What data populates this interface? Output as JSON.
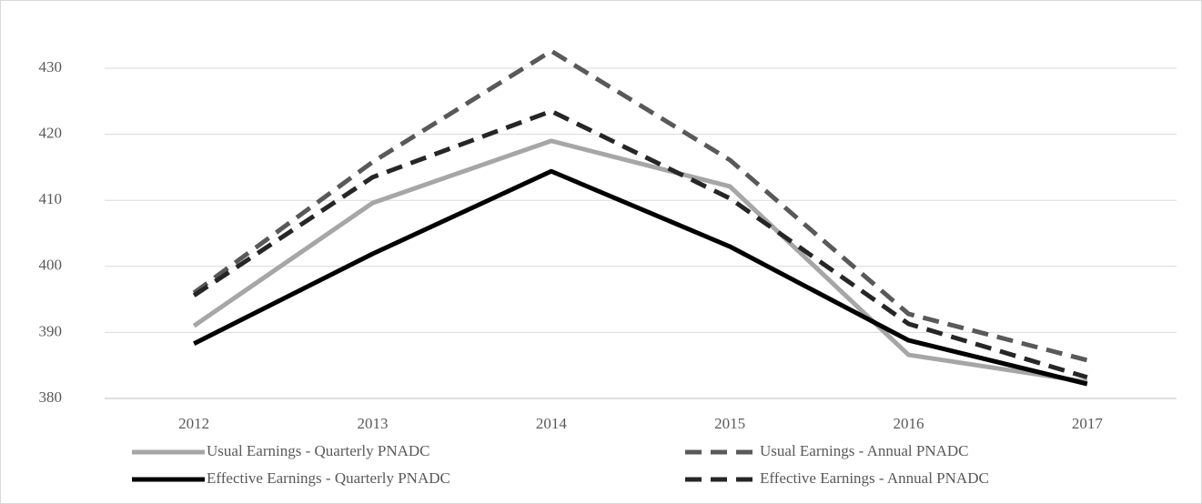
{
  "chart_data": {
    "type": "line",
    "x": [
      "2012",
      "2013",
      "2014",
      "2015",
      "2016",
      "2017"
    ],
    "series": [
      {
        "name": "Usual Earnings - Quarterly PNADC",
        "color": "#a6a6a6",
        "dash": false,
        "values": [
          391.0,
          409.6,
          419.0,
          412.1,
          386.6,
          382.5
        ]
      },
      {
        "name": "Usual Earnings - Annual PNADC",
        "color": "#595959",
        "dash": true,
        "values": [
          396.0,
          415.8,
          432.6,
          416.1,
          392.8,
          385.8
        ]
      },
      {
        "name": "Effective Earnings - Quarterly PNADC",
        "color": "#000000",
        "dash": false,
        "values": [
          388.3,
          401.9,
          414.4,
          403.0,
          388.8,
          382.2
        ]
      },
      {
        "name": "Effective Earnings - Annual PNADC",
        "color": "#262626",
        "dash": true,
        "values": [
          395.6,
          413.5,
          423.5,
          410.3,
          391.3,
          383.2
        ]
      }
    ],
    "ylim": [
      380,
      430
    ],
    "yticks": [
      380,
      390,
      400,
      410,
      420,
      430
    ],
    "grid": true
  }
}
